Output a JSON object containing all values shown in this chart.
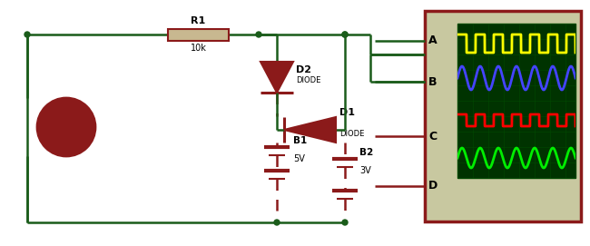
{
  "bg_color": "#f0f0e8",
  "wire_color": "#1a5c1a",
  "component_color": "#8B1A1A",
  "dark_red": "#8B1A1A",
  "scope_bg": "#003300",
  "scope_border": "#8B1A1A",
  "scope_box_bg": "#c8c8a0",
  "resistor_fill": "#c8b890",
  "source_fill": "#c8c8a0",
  "resistor_label": "R1",
  "resistor_value": "10k",
  "diode_d2_label": "D2",
  "diode_d1_label": "D1",
  "diode_label": "DIODE",
  "battery_b1_label": "B1",
  "battery_b1_value": "5V",
  "battery_b2_label": "B2",
  "battery_b2_value": "3V",
  "scope_labels": [
    "A",
    "B",
    "C",
    "D"
  ],
  "wave_colors": [
    "#ffff00",
    "#4444ff",
    "#ff0000",
    "#00ee00"
  ]
}
